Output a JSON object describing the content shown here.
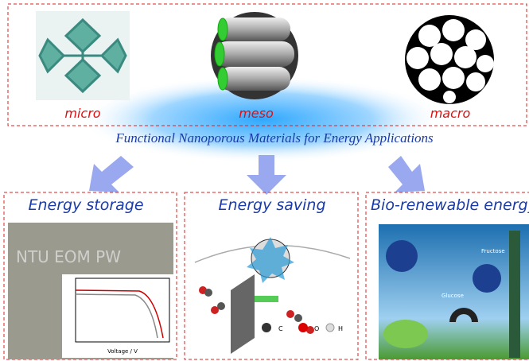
{
  "top": {
    "labels": [
      "micro",
      "meso",
      "macro"
    ],
    "title": "Functional Nanoporous Materials for Energy Applications"
  },
  "panels": [
    {
      "title": "Energy storage",
      "photo_text": "NTU EOM PW",
      "x_label": "Voltage / V"
    },
    {
      "title": "Energy saving",
      "legend": [
        "C",
        "O",
        "H"
      ]
    },
    {
      "title": "Bio-renewable energy",
      "labels": [
        "Fructose",
        "Glucose"
      ]
    }
  ]
}
